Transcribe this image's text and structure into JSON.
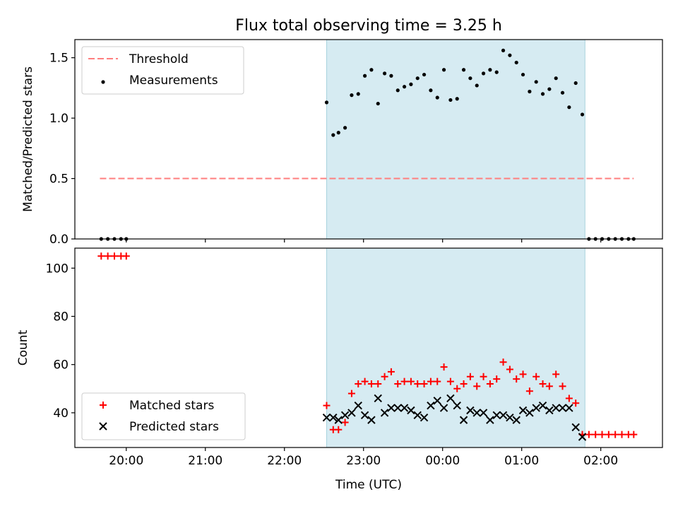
{
  "chart_data": [
    {
      "type": "scatter",
      "title": "Flux total observing time = 3.25 h",
      "ylabel": "Matched/Predicted stars",
      "ylim": [
        0.0,
        1.65
      ],
      "xlim_hours": [
        19.35,
        26.78
      ],
      "y_ticks": [
        0.0,
        0.5,
        1.0,
        1.5
      ],
      "y_tick_labels": [
        "0.0",
        "0.5",
        "1.0",
        "1.5"
      ],
      "observing_window": [
        "22:32",
        "01:48"
      ],
      "legend": {
        "position": "top-left",
        "entries": [
          "Threshold",
          "Measurements"
        ]
      },
      "series": [
        {
          "name": "Threshold",
          "kind": "dashed-line",
          "color": "#ff7f7f",
          "points": [
            [
              "19:40",
              0.5
            ],
            [
              "02:25",
              0.5
            ]
          ]
        },
        {
          "name": "Measurements",
          "kind": "dot",
          "color": "#000000",
          "points": [
            [
              "19:41",
              0.0
            ],
            [
              "19:46",
              0.0
            ],
            [
              "19:51",
              0.0
            ],
            [
              "19:56",
              0.0
            ],
            [
              "20:00",
              0.0
            ],
            [
              "22:32",
              1.13
            ],
            [
              "22:37",
              0.86
            ],
            [
              "22:41",
              0.88
            ],
            [
              "22:46",
              0.92
            ],
            [
              "22:51",
              1.19
            ],
            [
              "22:56",
              1.2
            ],
            [
              "23:01",
              1.35
            ],
            [
              "23:06",
              1.4
            ],
            [
              "23:11",
              1.12
            ],
            [
              "23:16",
              1.37
            ],
            [
              "23:21",
              1.35
            ],
            [
              "23:26",
              1.23
            ],
            [
              "23:31",
              1.26
            ],
            [
              "23:36",
              1.28
            ],
            [
              "23:41",
              1.33
            ],
            [
              "23:46",
              1.36
            ],
            [
              "23:51",
              1.23
            ],
            [
              "23:56",
              1.17
            ],
            [
              "00:01",
              1.4
            ],
            [
              "00:06",
              1.15
            ],
            [
              "00:11",
              1.16
            ],
            [
              "00:16",
              1.4
            ],
            [
              "00:21",
              1.33
            ],
            [
              "00:26",
              1.27
            ],
            [
              "00:31",
              1.37
            ],
            [
              "00:36",
              1.4
            ],
            [
              "00:41",
              1.38
            ],
            [
              "00:46",
              1.56
            ],
            [
              "00:51",
              1.52
            ],
            [
              "00:56",
              1.46
            ],
            [
              "01:01",
              1.36
            ],
            [
              "01:06",
              1.22
            ],
            [
              "01:11",
              1.3
            ],
            [
              "01:16",
              1.2
            ],
            [
              "01:21",
              1.24
            ],
            [
              "01:26",
              1.33
            ],
            [
              "01:31",
              1.21
            ],
            [
              "01:36",
              1.09
            ],
            [
              "01:41",
              1.29
            ],
            [
              "01:46",
              1.03
            ],
            [
              "01:51",
              0.0
            ],
            [
              "01:56",
              0.0
            ],
            [
              "02:01",
              0.0
            ],
            [
              "02:06",
              0.0
            ],
            [
              "02:11",
              0.0
            ],
            [
              "02:16",
              0.0
            ],
            [
              "02:21",
              0.0
            ],
            [
              "02:25",
              0.0
            ]
          ]
        }
      ]
    },
    {
      "type": "scatter",
      "ylabel": "Count",
      "xlabel": "Time (UTC)",
      "ylim": [
        25.6,
        108.3
      ],
      "xlim_hours": [
        19.35,
        26.78
      ],
      "y_ticks": [
        40,
        60,
        80,
        100
      ],
      "y_tick_labels": [
        "40",
        "60",
        "80",
        "100"
      ],
      "x_ticks": [
        "20:00",
        "21:00",
        "22:00",
        "23:00",
        "00:00",
        "01:00",
        "02:00"
      ],
      "observing_window": [
        "22:32",
        "01:48"
      ],
      "legend": {
        "position": "bottom-left",
        "entries": [
          "Matched stars",
          "Predicted stars"
        ]
      },
      "series": [
        {
          "name": "Matched stars",
          "kind": "plus",
          "color": "#ff0000",
          "points": [
            [
              "19:41",
              105
            ],
            [
              "19:46",
              105
            ],
            [
              "19:51",
              105
            ],
            [
              "19:56",
              105
            ],
            [
              "20:00",
              105
            ],
            [
              "22:32",
              43
            ],
            [
              "22:37",
              33
            ],
            [
              "22:41",
              33
            ],
            [
              "22:46",
              36
            ],
            [
              "22:51",
              48
            ],
            [
              "22:56",
              52
            ],
            [
              "23:01",
              53
            ],
            [
              "23:06",
              52
            ],
            [
              "23:11",
              52
            ],
            [
              "23:16",
              55
            ],
            [
              "23:21",
              57
            ],
            [
              "23:26",
              52
            ],
            [
              "23:31",
              53
            ],
            [
              "23:36",
              53
            ],
            [
              "23:41",
              52
            ],
            [
              "23:46",
              52
            ],
            [
              "23:51",
              53
            ],
            [
              "23:56",
              53
            ],
            [
              "00:01",
              59
            ],
            [
              "00:06",
              53
            ],
            [
              "00:11",
              50
            ],
            [
              "00:16",
              52
            ],
            [
              "00:21",
              55
            ],
            [
              "00:26",
              51
            ],
            [
              "00:31",
              55
            ],
            [
              "00:36",
              52
            ],
            [
              "00:41",
              54
            ],
            [
              "00:46",
              61
            ],
            [
              "00:51",
              58
            ],
            [
              "00:56",
              54
            ],
            [
              "01:01",
              56
            ],
            [
              "01:06",
              49
            ],
            [
              "01:11",
              55
            ],
            [
              "01:16",
              52
            ],
            [
              "01:21",
              51
            ],
            [
              "01:26",
              56
            ],
            [
              "01:31",
              51
            ],
            [
              "01:36",
              46
            ],
            [
              "01:41",
              44
            ],
            [
              "01:46",
              31
            ],
            [
              "01:51",
              31
            ],
            [
              "01:56",
              31
            ],
            [
              "02:01",
              31
            ],
            [
              "02:06",
              31
            ],
            [
              "02:11",
              31
            ],
            [
              "02:16",
              31
            ],
            [
              "02:21",
              31
            ],
            [
              "02:25",
              31
            ]
          ]
        },
        {
          "name": "Predicted stars",
          "kind": "x",
          "color": "#000000",
          "points": [
            [
              "22:32",
              38
            ],
            [
              "22:37",
              38
            ],
            [
              "22:41",
              37
            ],
            [
              "22:46",
              39
            ],
            [
              "22:51",
              40
            ],
            [
              "22:56",
              43
            ],
            [
              "23:01",
              39
            ],
            [
              "23:06",
              37
            ],
            [
              "23:11",
              46
            ],
            [
              "23:16",
              40
            ],
            [
              "23:21",
              42
            ],
            [
              "23:26",
              42
            ],
            [
              "23:31",
              42
            ],
            [
              "23:36",
              41
            ],
            [
              "23:41",
              39
            ],
            [
              "23:46",
              38
            ],
            [
              "23:51",
              43
            ],
            [
              "23:56",
              45
            ],
            [
              "00:01",
              42
            ],
            [
              "00:06",
              46
            ],
            [
              "00:11",
              43
            ],
            [
              "00:16",
              37
            ],
            [
              "00:21",
              41
            ],
            [
              "00:26",
              40
            ],
            [
              "00:31",
              40
            ],
            [
              "00:36",
              37
            ],
            [
              "00:41",
              39
            ],
            [
              "00:46",
              39
            ],
            [
              "00:51",
              38
            ],
            [
              "00:56",
              37
            ],
            [
              "01:01",
              41
            ],
            [
              "01:06",
              40
            ],
            [
              "01:11",
              42
            ],
            [
              "01:16",
              43
            ],
            [
              "01:21",
              41
            ],
            [
              "01:26",
              42
            ],
            [
              "01:31",
              42
            ],
            [
              "01:36",
              42
            ],
            [
              "01:41",
              34
            ],
            [
              "01:46",
              30
            ]
          ]
        }
      ]
    }
  ]
}
